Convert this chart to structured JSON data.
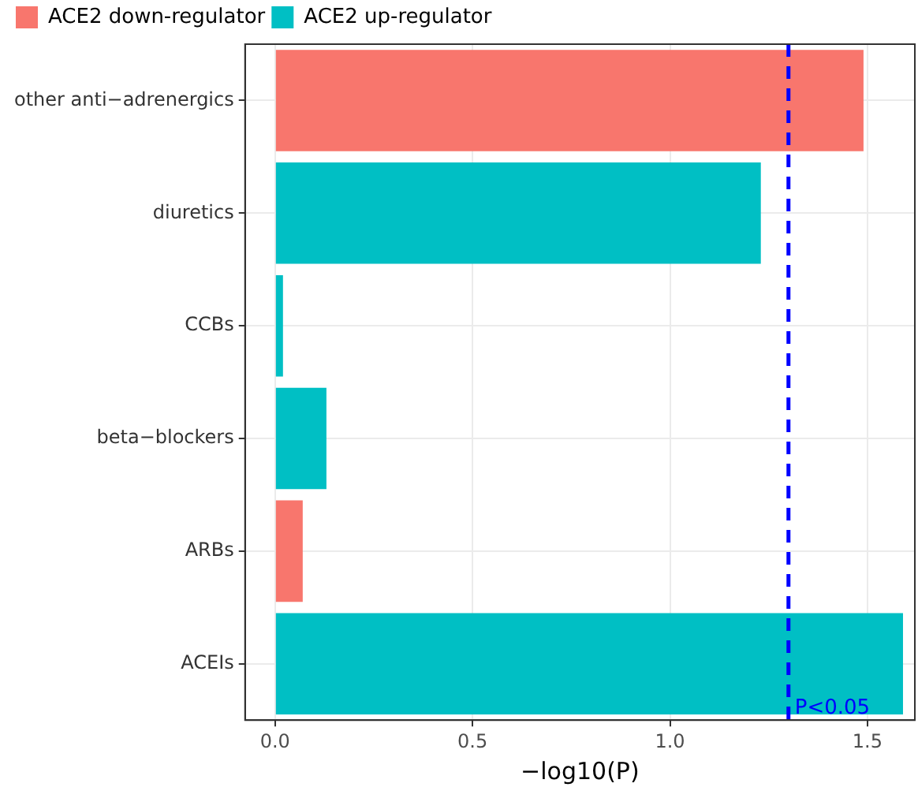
{
  "chart_data": {
    "type": "bar",
    "orientation": "horizontal",
    "stacked": true,
    "xlabel": "−log10(P)",
    "categories": [
      "other anti−adrenergics",
      "diuretics",
      "CCBs",
      "beta−blockers",
      "ARBs",
      "ACEIs"
    ],
    "series": [
      {
        "name": "ACE2 down-regulator",
        "color": "#f8766d",
        "values": [
          1.49,
          null,
          null,
          null,
          0.07,
          null
        ]
      },
      {
        "name": "ACE2 up-regulator",
        "color": "#00bfc4",
        "values": [
          null,
          1.23,
          0.02,
          0.13,
          null,
          1.59
        ]
      }
    ],
    "xlim": [
      -0.076,
      1.62
    ],
    "xticks": [
      {
        "value": 0,
        "label": "0.0"
      },
      {
        "value": 0.5,
        "label": "0.5"
      },
      {
        "value": 1,
        "label": "1.0"
      },
      {
        "value": 1.5,
        "label": "1.5"
      }
    ],
    "ref_lines": [
      {
        "axis": "x",
        "value": 1.3,
        "label": "P<0.05",
        "color": "#0000ff",
        "line_style": "dashed"
      }
    ],
    "grid": true,
    "legend": "top"
  }
}
